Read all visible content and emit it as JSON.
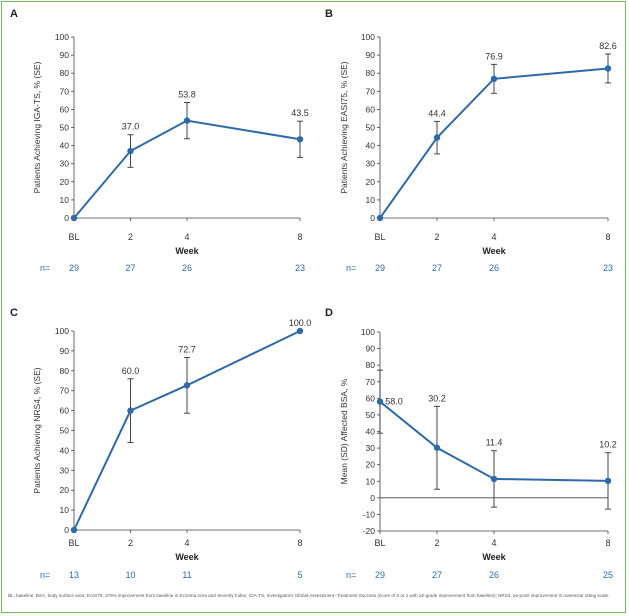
{
  "chart_data": [
    {
      "panel": "A",
      "type": "line",
      "ylabel": "Patients Achieving IGA-TS, % (SE)",
      "xlabel": "Week",
      "categories": [
        "BL",
        "2",
        "4",
        "8"
      ],
      "x": [
        0,
        2,
        4,
        8
      ],
      "series": [
        {
          "values": [
            0,
            37.0,
            53.8,
            43.5
          ],
          "labels": [
            "",
            "37.0",
            "53.8",
            "43.5"
          ],
          "err": [
            0,
            9,
            10,
            10
          ]
        }
      ],
      "ylim": [
        0,
        100
      ],
      "yticks": [
        0,
        10,
        20,
        30,
        40,
        50,
        60,
        70,
        80,
        90,
        100
      ],
      "n_prefix": "n=",
      "n": [
        "29",
        "27",
        "26",
        "23"
      ],
      "color": "#2f6aa8"
    },
    {
      "panel": "B",
      "type": "line",
      "ylabel": "Patients Achieving EASI75, % (SE)",
      "xlabel": "Week",
      "categories": [
        "BL",
        "2",
        "4",
        "8"
      ],
      "x": [
        0,
        2,
        4,
        8
      ],
      "series": [
        {
          "values": [
            0,
            44.4,
            76.9,
            82.6
          ],
          "labels": [
            "",
            "44.4",
            "76.9",
            "82.6"
          ],
          "err": [
            0,
            9,
            8,
            8
          ]
        }
      ],
      "ylim": [
        0,
        100
      ],
      "yticks": [
        0,
        10,
        20,
        30,
        40,
        50,
        60,
        70,
        80,
        90,
        100
      ],
      "n_prefix": "n=",
      "n": [
        "29",
        "27",
        "26",
        "23"
      ],
      "color": "#2f6aa8"
    },
    {
      "panel": "C",
      "type": "line",
      "ylabel": "Patients Achieving NRS4, % (SE)",
      "xlabel": "Week",
      "categories": [
        "BL",
        "2",
        "4",
        "8"
      ],
      "x": [
        0,
        2,
        4,
        8
      ],
      "series": [
        {
          "values": [
            0,
            60.0,
            72.7,
            100.0
          ],
          "labels": [
            "",
            "60.0",
            "72.7",
            "100.0"
          ],
          "err": [
            0,
            16,
            14,
            0
          ]
        }
      ],
      "ylim": [
        0,
        100
      ],
      "yticks": [
        0,
        10,
        20,
        30,
        40,
        50,
        60,
        70,
        80,
        90,
        100
      ],
      "n_prefix": "n=",
      "n": [
        "13",
        "10",
        "11",
        "5"
      ],
      "color": "#2f6aa8"
    },
    {
      "panel": "D",
      "type": "line",
      "ylabel": "Mean (SD) Affected BSA, %",
      "xlabel": "Week",
      "categories": [
        "BL",
        "2",
        "4",
        "8"
      ],
      "x": [
        0,
        2,
        4,
        8
      ],
      "series": [
        {
          "values": [
            58.0,
            30.2,
            11.4,
            10.2
          ],
          "labels": [
            "58.0",
            "30.2",
            "11.4",
            "10.2"
          ],
          "err": [
            19,
            25,
            17,
            17
          ]
        }
      ],
      "ylim": [
        -20,
        100
      ],
      "yticks": [
        -20,
        -10,
        0,
        10,
        20,
        30,
        40,
        50,
        60,
        70,
        80,
        90,
        100
      ],
      "zero_line": true,
      "n_prefix": "n=",
      "n": [
        "29",
        "27",
        "26",
        "25"
      ],
      "color": "#2f6aa8"
    }
  ],
  "footnote": "BL, baseline; BSA, body surface area; EASI75, ≥75% improvement from baseline in Eczema Area and Severity Index; IGA-TS, Investigator's Global Assessment–Treatment Success (score of 0 or 1 with ≥2-grade improvement from baseline); NRS4, ≥4-point improvement in numerical rating scale."
}
